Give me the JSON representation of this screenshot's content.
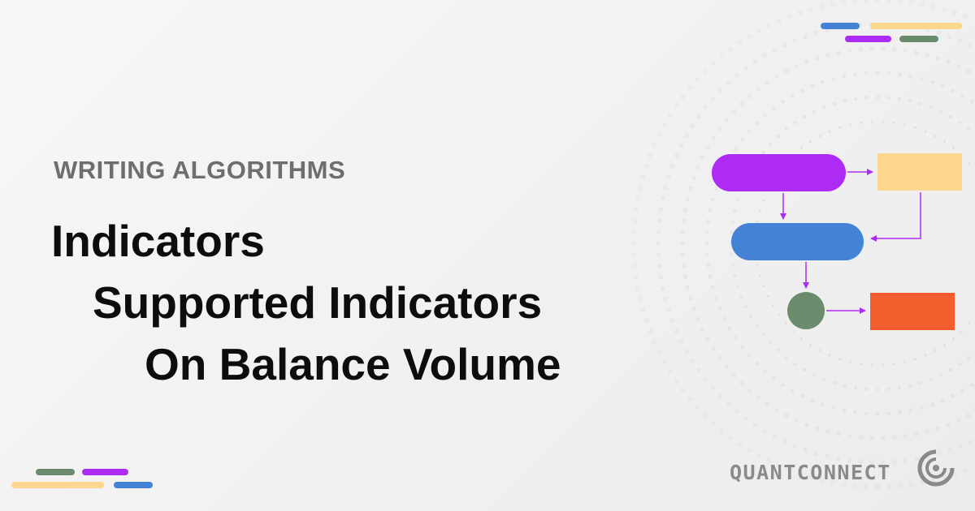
{
  "header": {
    "section_label": "WRITING ALGORITHMS"
  },
  "title": {
    "line1": "Indicators",
    "line2": "Supported Indicators",
    "line3": "On Balance Volume"
  },
  "brand": {
    "name": "QUANTCONNECT"
  },
  "colors": {
    "purple": "#ad2bf5",
    "yellow": "#fdd68f",
    "blue": "#4482d6",
    "green": "#6a8b6c",
    "orange": "#f45e2e",
    "label_gray": "#6e6e6e",
    "title": "#0d0d0d"
  },
  "icons": {
    "logo": "quantconnect-logo-icon",
    "flowchart": "flowchart-diagram-icon"
  }
}
